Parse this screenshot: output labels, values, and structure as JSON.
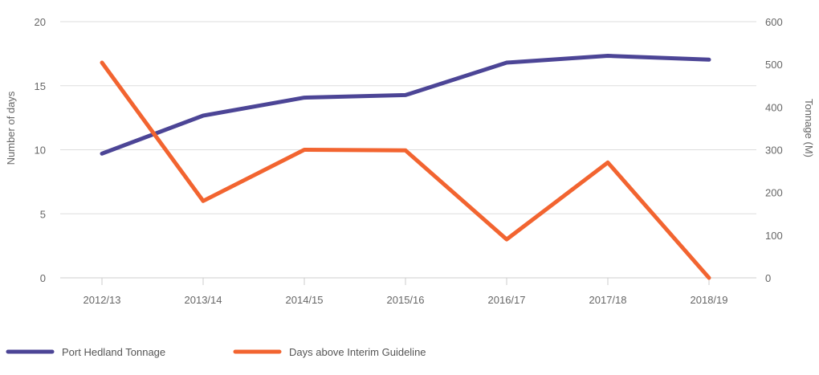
{
  "chart_data": {
    "type": "line",
    "categories": [
      "2012/13",
      "2013/14",
      "2014/15",
      "2015/16",
      "2016/17",
      "2017/18",
      "2018/19"
    ],
    "series": [
      {
        "name": "Port Hedland Tonnage",
        "axis": "right",
        "color": "#4c4596",
        "values": [
          291,
          380,
          422,
          428,
          504,
          520,
          511
        ]
      },
      {
        "name": "Days above Interim Guideline",
        "axis": "left",
        "color": "#f26430",
        "values": [
          16.8,
          6,
          10,
          9.95,
          3,
          9,
          0
        ]
      }
    ],
    "ylabel": "Number of days",
    "ylabel_right": "Tonnage (M)",
    "ylim": [
      0,
      20
    ],
    "yticks": [
      "0",
      "5",
      "10",
      "15",
      "20"
    ],
    "ylim_right": [
      0,
      600
    ],
    "yticks_right": [
      "0",
      "100",
      "200",
      "300",
      "400",
      "500",
      "600"
    ],
    "grid": true,
    "legend_position": "bottom-left"
  },
  "colors": {
    "grid": "#dddddd",
    "axis_text": "#666666",
    "legend_text": "#555555"
  }
}
